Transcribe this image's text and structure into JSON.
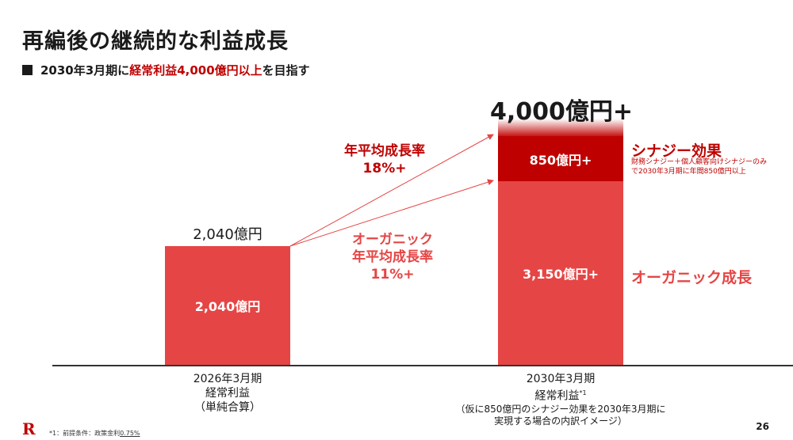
{
  "title": "再編後の継続的な利益成長",
  "subtitle": {
    "prefix": "2030年3月期に",
    "highlight": "経常利益4,000億円以上",
    "suffix": "を目指す"
  },
  "chart_data": {
    "type": "bar",
    "unit": "億円",
    "categories": [
      "2026年3月期 経常利益（単純合算）",
      "2030年3月期 経常利益"
    ],
    "series": [
      {
        "name": "オーガニック成長",
        "values": [
          2040,
          3150
        ]
      },
      {
        "name": "シナジー効果",
        "values": [
          0,
          850
        ]
      }
    ],
    "labels": {
      "bar_2026_top": "2,040億円",
      "bar_2026_inside": "2,040億円",
      "bar_2030_top": "4,000億円+",
      "organic_inside": "3,150億円+",
      "synergy_inside": "850億円+"
    },
    "annotations": {
      "cagr_total_line1": "年平均成長率",
      "cagr_total_line2": "18%+",
      "cagr_organic_line1": "オーガニック",
      "cagr_organic_line2": "年平均成長率",
      "cagr_organic_line3": "11%+",
      "synergy_title": "シナジー効果",
      "synergy_note_line1": "財務シナジー＋個人顧客向けシナジーのみ",
      "synergy_note_line2": "で2030年3月期に年間850億円以上",
      "organic_title": "オーガニック成長"
    },
    "x_labels": {
      "c2026_line1": "2026年3月期",
      "c2026_line2": "経常利益",
      "c2026_line3": "（単純合算）",
      "c2030_line1": "2030年3月期",
      "c2030_line2": "経常利益",
      "c2030_sup": "*1",
      "c2030_note1": "（仮に850億円のシナジー効果を2030年3月期に",
      "c2030_note2": "実現する場合の内訳イメージ）"
    },
    "colors": {
      "organic": "#e64545",
      "synergy": "#bf0000",
      "axis": "#333333"
    }
  },
  "footer": {
    "logo": "R",
    "note_prefix": "*1：前提条件：政策金利",
    "note_value": "0.75%",
    "page": "26"
  }
}
